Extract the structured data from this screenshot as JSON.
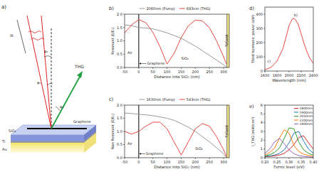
{
  "diagram": {
    "labels": [
      "a)",
      "SiO₂",
      "Ti",
      "Au",
      "THG",
      "Graphene",
      "δt",
      "φ₁",
      "φ₂",
      "φ₃"
    ]
  },
  "chart_data": [
    {
      "type": "line",
      "title": "b)",
      "xlabel": "Distance into SiO₂ (nm)",
      "ylabel": "Resonant |E/E₀|",
      "x": [
        -50,
        -25,
        0,
        25,
        50,
        75,
        100,
        125,
        150,
        175,
        200,
        225,
        250,
        275,
        300,
        310
      ],
      "xlim": [
        -50,
        320
      ],
      "xticks": [
        -50,
        0,
        50,
        100,
        150,
        200,
        250,
        300
      ],
      "ylim": [
        0,
        2
      ],
      "yticks": [
        {
          "value": 0,
          "label": "0.0"
        },
        {
          "value": 0.5,
          "label": "0.5"
        },
        {
          "value": 1,
          "label": "1.0"
        },
        {
          "value": 1.5,
          "label": "1.5"
        },
        {
          "value": 2,
          "label": "2.0"
        }
      ],
      "series": [
        {
          "name": "2080nm (Pump)",
          "color": "#999999",
          "values": [
            1.6,
            1.57,
            1.5,
            1.48,
            1.45,
            1.38,
            1.3,
            1.2,
            1.1,
            0.95,
            0.8,
            0.63,
            0.45,
            0.28,
            0.1,
            0.0
          ]
        },
        {
          "name": "693nm (THG)",
          "color": "#e8483f",
          "values": [
            1.3,
            1.6,
            1.8,
            1.68,
            1.32,
            0.78,
            0.13,
            0.53,
            1.12,
            1.56,
            1.78,
            1.75,
            1.49,
            1.0,
            0.4,
            0.13
          ]
        }
      ],
      "legend": "top",
      "grid": false,
      "boundaries": [
        0,
        310
      ],
      "annotations": [
        {
          "text": "Air",
          "x": -40,
          "y": 0.5
        },
        {
          "text": "SiO₂",
          "x": 150,
          "y": 0.3
        },
        {
          "text": "Graphene",
          "x": 30,
          "y": 0.1
        },
        {
          "text": "Ti/Gold",
          "x": 315,
          "y": 1.0
        }
      ]
    },
    {
      "type": "line",
      "title": "c)",
      "xlabel": "Distance into SiO₂ (nm)",
      "ylabel": "Non Resonant |E/E₀|",
      "x": [
        -50,
        -25,
        0,
        25,
        50,
        75,
        100,
        125,
        150,
        175,
        200,
        225,
        250,
        275,
        300,
        310
      ],
      "xlim": [
        -50,
        320
      ],
      "xticks": [
        -50,
        0,
        50,
        100,
        150,
        200,
        250,
        300
      ],
      "ylim": [
        0,
        2
      ],
      "yticks": [
        {
          "value": 0,
          "label": "0.0"
        },
        {
          "value": 0.5,
          "label": "0.5"
        },
        {
          "value": 1,
          "label": "1.0"
        },
        {
          "value": 1.5,
          "label": "1.5"
        },
        {
          "value": 2,
          "label": "2.0"
        }
      ],
      "series": [
        {
          "name": "1630nm (Pump)",
          "color": "#999999",
          "values": [
            1.7,
            1.68,
            1.65,
            1.63,
            1.6,
            1.55,
            1.5,
            1.42,
            1.3,
            1.16,
            1.0,
            0.8,
            0.6,
            0.38,
            0.15,
            0.0
          ]
        },
        {
          "name": "543nm (THG)",
          "color": "#e8483f",
          "values": [
            1.0,
            0.9,
            1.0,
            1.2,
            1.35,
            1.35,
            1.1,
            0.6,
            0.1,
            0.6,
            1.1,
            1.3,
            1.2,
            0.8,
            0.3,
            0.05
          ]
        }
      ],
      "legend": "top",
      "grid": false,
      "boundaries": [
        0,
        310
      ],
      "annotations": [
        {
          "text": "Air",
          "x": -40,
          "y": 0.5
        },
        {
          "text": "SiO₂",
          "x": 200,
          "y": 0.3
        },
        {
          "text": "Graphene",
          "x": 25,
          "y": 0.1
        },
        {
          "text": "Ti/Gold",
          "x": 315,
          "y": 1.0
        }
      ]
    },
    {
      "type": "line",
      "title": "d)",
      "xlabel": "Wavelength (nm)",
      "ylabel": "Third harmonic power (aW)",
      "x": [
        1600,
        1700,
        1800,
        1900,
        1950,
        2000,
        2050,
        2080,
        2100,
        2150,
        2200,
        2250,
        2300,
        2350,
        2400
      ],
      "xlim": [
        1600,
        2400
      ],
      "xticks": [
        1600,
        1800,
        2000,
        2200,
        2400
      ],
      "ylim": [
        0,
        450
      ],
      "yticks": [
        0,
        100,
        200,
        300,
        400
      ],
      "series": [
        {
          "color": "#e8483f",
          "values": [
            10,
            25,
            70,
            160,
            240,
            320,
            365,
            370,
            365,
            330,
            260,
            190,
            130,
            85,
            55
          ]
        }
      ],
      "grid": false,
      "annotations": [
        {
          "text": "b)",
          "x": 2080,
          "y": 385
        },
        {
          "text": "c)",
          "x": 1640,
          "y": 60
        }
      ]
    },
    {
      "type": "line",
      "title": "e)",
      "xlabel": "Fermi level (eV)",
      "ylabel": "I_THG (mW/cm²)",
      "x": [
        0.2,
        0.22,
        0.24,
        0.26,
        0.28,
        0.3,
        0.32,
        0.34,
        0.36,
        0.38,
        0.4
      ],
      "xlim": [
        0.2,
        0.4
      ],
      "xticks": [
        {
          "value": 0.2,
          "label": "0.20"
        },
        0.25,
        {
          "value": 0.3,
          "label": "0.30"
        },
        0.35,
        {
          "value": 0.4,
          "label": "0.40"
        }
      ],
      "ylim": [
        0,
        6
      ],
      "yticks": [
        0,
        1,
        2,
        3,
        4,
        5,
        6
      ],
      "series": [
        {
          "name": "1800nm",
          "color": "#d62728",
          "values": [
            0.1,
            0.15,
            0.2,
            0.3,
            0.5,
            0.9,
            1.5,
            2.3,
            2.5,
            1.7,
            1.0
          ]
        },
        {
          "name": "1900nm",
          "color": "#1f77b4",
          "values": [
            0.15,
            0.2,
            0.3,
            0.5,
            0.9,
            1.7,
            2.8,
            3.0,
            1.9,
            1.0,
            0.5
          ]
        },
        {
          "name": "2050nm",
          "color": "#2ca02c",
          "values": [
            0.2,
            0.35,
            0.6,
            1.1,
            2.2,
            3.4,
            3.3,
            1.8,
            0.9,
            0.5,
            0.3
          ]
        },
        {
          "name": "2200nm",
          "color": "#ff7f0e",
          "values": [
            0.3,
            0.6,
            1.1,
            2.2,
            3.2,
            2.8,
            1.4,
            0.7,
            0.4,
            0.25,
            0.15
          ]
        },
        {
          "name": "2400nm",
          "color": "#9467bd",
          "values": [
            0.5,
            1.0,
            1.8,
            2.2,
            1.6,
            0.9,
            0.45,
            0.25,
            0.15,
            0.1,
            0.05
          ]
        }
      ],
      "legend": "upper right",
      "grid": false
    }
  ]
}
